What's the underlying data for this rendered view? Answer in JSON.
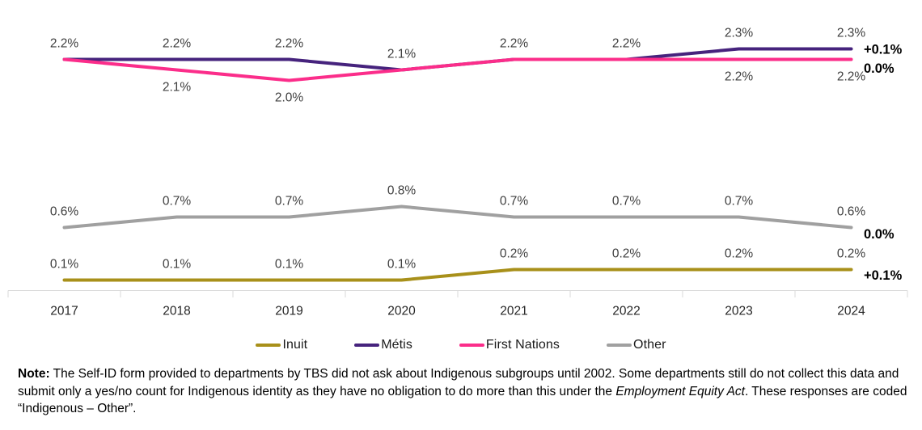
{
  "chart_data": {
    "type": "line",
    "categories": [
      "2017",
      "2018",
      "2019",
      "2020",
      "2021",
      "2022",
      "2023",
      "2024"
    ],
    "series": [
      {
        "name": "Inuit",
        "color": "#a8901a",
        "values": [
          0.1,
          0.1,
          0.1,
          0.1,
          0.2,
          0.2,
          0.2,
          0.2
        ],
        "end_change_label": "+0.1%",
        "label_positions": [
          "a",
          "a",
          "a",
          "a",
          "a",
          "a",
          "a",
          "a"
        ]
      },
      {
        "name": "Métis",
        "color": "#46237d",
        "values": [
          2.2,
          2.2,
          2.2,
          2.1,
          2.2,
          2.2,
          2.3,
          2.3
        ],
        "end_change_label": "+0.1%",
        "label_positions": [
          "a",
          "a",
          "a",
          "a",
          "a",
          "a",
          "a",
          "a"
        ]
      },
      {
        "name": "First Nations",
        "color": "#fb2d8a",
        "values": [
          2.2,
          2.1,
          2.0,
          2.1,
          2.2,
          2.2,
          2.2,
          2.2
        ],
        "end_change_label": "0.0%",
        "label_positions": [
          null,
          "b",
          "b",
          null,
          null,
          null,
          "b",
          "b"
        ]
      },
      {
        "name": "Other",
        "color": "#a0a0a0",
        "values": [
          0.6,
          0.7,
          0.7,
          0.8,
          0.7,
          0.7,
          0.7,
          0.6
        ],
        "end_change_label": "0.0%",
        "label_positions": [
          "a",
          "a",
          "a",
          "a",
          "a",
          "a",
          "a",
          "a"
        ]
      }
    ],
    "ylim": [
      0,
      2.75
    ],
    "grid": false,
    "legend_position": "bottom",
    "label_format": "percent_1dp",
    "axis_color": "#d9d9d9",
    "data_label_color": "#3f3f3f",
    "year_label_color": "#262626",
    "change_label_color": "#000000"
  },
  "note": {
    "segments": [
      {
        "text": "Note:",
        "bold": true
      },
      {
        "text": " The Self-ID form provided to departments by TBS did not ask about Indigenous subgroups until 2002. Some departments still do not collect this data and submit only a yes/no count for Indigenous identity as they have no obligation to do more than this under the "
      },
      {
        "text": "Employment Equity Act",
        "italic": true
      },
      {
        "text": ". These responses are coded “Indigenous – Other”."
      }
    ]
  }
}
